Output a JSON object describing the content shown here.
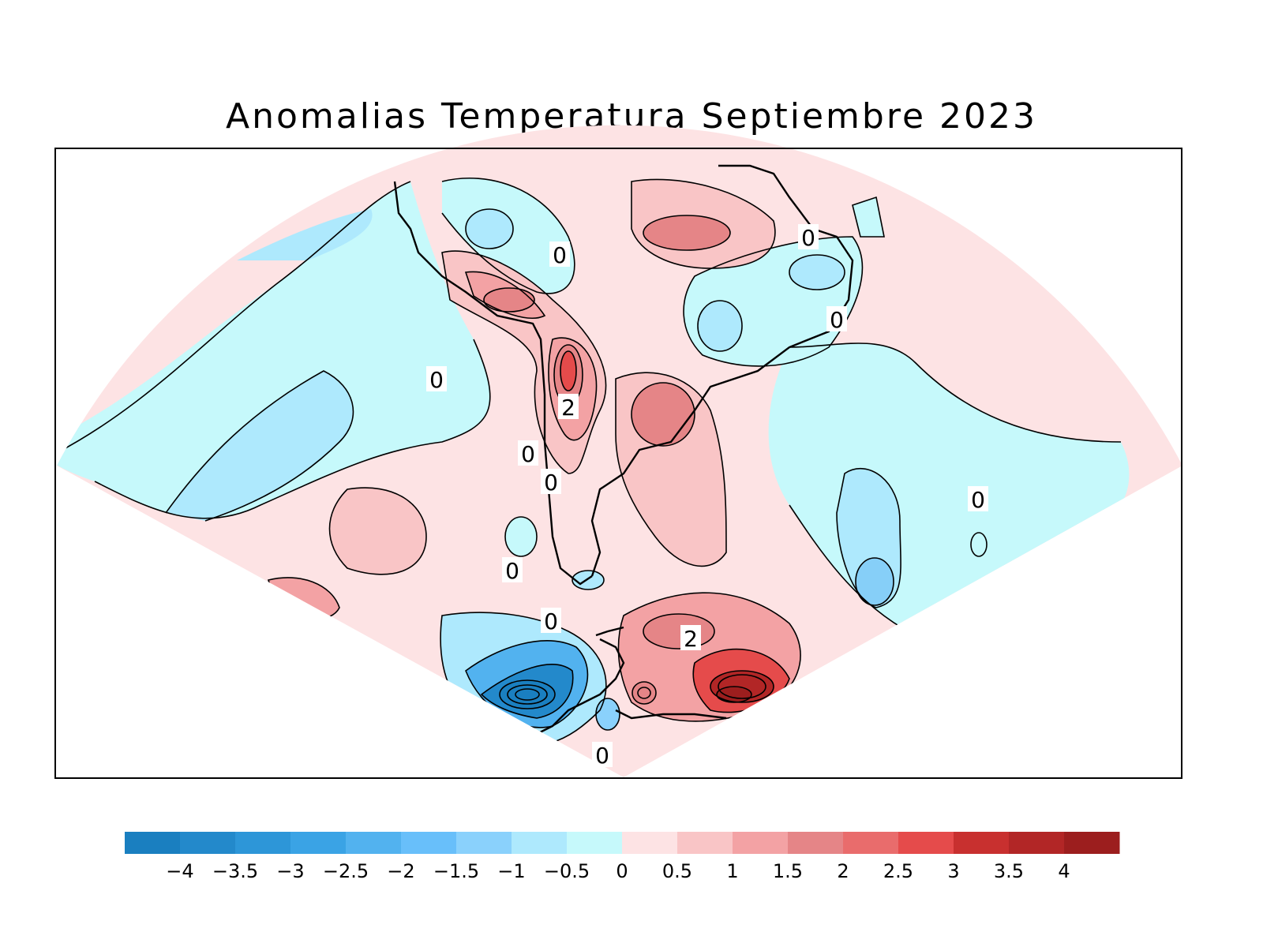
{
  "title": "Anomalias Temperatura Septiembre 2023",
  "colorbar": {
    "colors": [
      "#1a7fc0",
      "#2389cb",
      "#2d96d8",
      "#3aa3e5",
      "#52b2ef",
      "#68bffa",
      "#8ad1fc",
      "#aee9fd",
      "#c6f9fb",
      "#fde3e4",
      "#f9c5c6",
      "#f3a2a4",
      "#e58587",
      "#e96c6c",
      "#e54b4b",
      "#c8302f",
      "#b22626",
      "#9c1e1e"
    ],
    "labels": [
      "−4",
      "−3.5",
      "−3",
      "−2.5",
      "−2",
      "−1.5",
      "−1",
      "−0.5",
      "0",
      "0.5",
      "1",
      "1.5",
      "2",
      "2.5",
      "3",
      "3.5",
      "4"
    ]
  },
  "contour_labels": [
    "0",
    "0",
    "0",
    "0",
    "2",
    "0",
    "0",
    "0",
    "0",
    "0",
    "2",
    "0"
  ]
}
